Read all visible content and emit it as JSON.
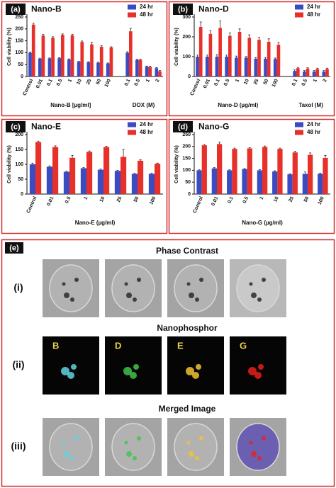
{
  "chart_data": [
    {
      "type": "bar",
      "panel_label": "(a)",
      "title": "Nano-B",
      "y_label": "Cell viability (%)",
      "categories": [
        "Control",
        "0.01",
        "0.1",
        "0.5",
        "1",
        "10",
        "25",
        "50",
        "100",
        null,
        "0.1",
        "0.5",
        "1",
        "2"
      ],
      "group_labels": [
        "Nano-B [µg/ml]",
        "DOX (M)"
      ],
      "ylim": [
        0,
        250
      ],
      "yticks": [
        0,
        50,
        100,
        150,
        200,
        250
      ],
      "legend": "upper right",
      "series": [
        {
          "name": "24 hr",
          "color": "#3b4cc0",
          "values": [
            100,
            75,
            76,
            77,
            72,
            62,
            60,
            58,
            55,
            null,
            100,
            70,
            42,
            35
          ],
          "errors": [
            3,
            2,
            2,
            2,
            2,
            2,
            2,
            2,
            2,
            null,
            4,
            2,
            2,
            2
          ]
        },
        {
          "name": "48 hr",
          "color": "#e8302a",
          "values": [
            218,
            172,
            163,
            175,
            173,
            145,
            135,
            125,
            122,
            null,
            190,
            70,
            40,
            22
          ],
          "errors": [
            6,
            5,
            4,
            4,
            4,
            4,
            8,
            4,
            3,
            null,
            12,
            3,
            3,
            3
          ]
        }
      ]
    },
    {
      "type": "bar",
      "panel_label": "(b)",
      "title": "Nano-D",
      "y_label": "Cell viability (%)",
      "categories": [
        "Control",
        "0.01",
        "0.1",
        "0.5",
        "1",
        "10",
        "25",
        "50",
        "100",
        null,
        "0.1",
        "0.5",
        "1",
        "2"
      ],
      "group_labels": [
        "Nano-D (µg/ml)",
        "Taxol (M)"
      ],
      "ylim": [
        0,
        300
      ],
      "yticks": [
        0,
        100,
        200,
        300
      ],
      "legend": "upper right",
      "series": [
        {
          "name": "24 hr",
          "color": "#3b4cc0",
          "values": [
            100,
            100,
            100,
            100,
            95,
            95,
            90,
            90,
            88,
            null,
            28,
            25,
            25,
            25
          ],
          "errors": [
            8,
            8,
            10,
            8,
            8,
            6,
            6,
            6,
            5,
            null,
            5,
            5,
            5,
            5
          ]
        },
        {
          "name": "48 hr",
          "color": "#e8302a",
          "values": [
            250,
            215,
            245,
            205,
            225,
            195,
            185,
            175,
            160,
            null,
            42,
            40,
            38,
            38
          ],
          "errors": [
            25,
            15,
            35,
            15,
            15,
            15,
            12,
            15,
            12,
            null,
            4,
            4,
            4,
            4
          ]
        }
      ]
    },
    {
      "type": "bar",
      "panel_label": "(c)",
      "title": "Nano-E",
      "y_label": "Cell viability (%)",
      "categories": [
        "Control",
        "0.01",
        "0.5",
        "1",
        "10",
        "25",
        "50",
        "100"
      ],
      "group_labels": [
        "Nano-E (µg/ml)"
      ],
      "ylim": [
        0,
        200
      ],
      "yticks": [
        0,
        50,
        100,
        150,
        200
      ],
      "legend": "upper right",
      "series": [
        {
          "name": "24 hr",
          "color": "#3b4cc0",
          "values": [
            100,
            92,
            75,
            87,
            82,
            78,
            68,
            68
          ],
          "errors": [
            4,
            3,
            2,
            2,
            2,
            2,
            2,
            2
          ]
        },
        {
          "name": "48 hr",
          "color": "#e8302a",
          "values": [
            175,
            158,
            122,
            142,
            158,
            125,
            112,
            102
          ],
          "errors": [
            3,
            4,
            8,
            3,
            3,
            25,
            3,
            2
          ]
        }
      ]
    },
    {
      "type": "bar",
      "panel_label": "(d)",
      "title": "Nano-G",
      "y_label": "Cell viability (%)",
      "categories": [
        "Control",
        "0.01",
        "0.1",
        "0.5",
        "1",
        "10",
        "25",
        "50",
        "100"
      ],
      "group_labels": [
        "Nano-G (µg/ml)"
      ],
      "ylim": [
        0,
        250
      ],
      "yticks": [
        0,
        50,
        100,
        150,
        200,
        250
      ],
      "legend": "upper right",
      "series": [
        {
          "name": "24 hr",
          "color": "#3b4cc0",
          "values": [
            100,
            108,
            100,
            105,
            100,
            95,
            83,
            85,
            85
          ],
          "errors": [
            2,
            3,
            2,
            2,
            3,
            3,
            2,
            8,
            3
          ]
        },
        {
          "name": "48 hr",
          "color": "#e8302a",
          "values": [
            205,
            210,
            190,
            192,
            198,
            190,
            175,
            165,
            152
          ],
          "errors": [
            3,
            8,
            3,
            3,
            4,
            3,
            5,
            8,
            10
          ]
        }
      ]
    }
  ],
  "image_panel": {
    "label": "(e)",
    "rows": [
      {
        "label": "(i)",
        "title": "Phase Contrast"
      },
      {
        "label": "(ii)",
        "title": "Nanophosphor",
        "image_labels": [
          "B",
          "D",
          "E",
          "G"
        ]
      },
      {
        "label": "(iii)",
        "title": "Merged Image"
      }
    ]
  }
}
